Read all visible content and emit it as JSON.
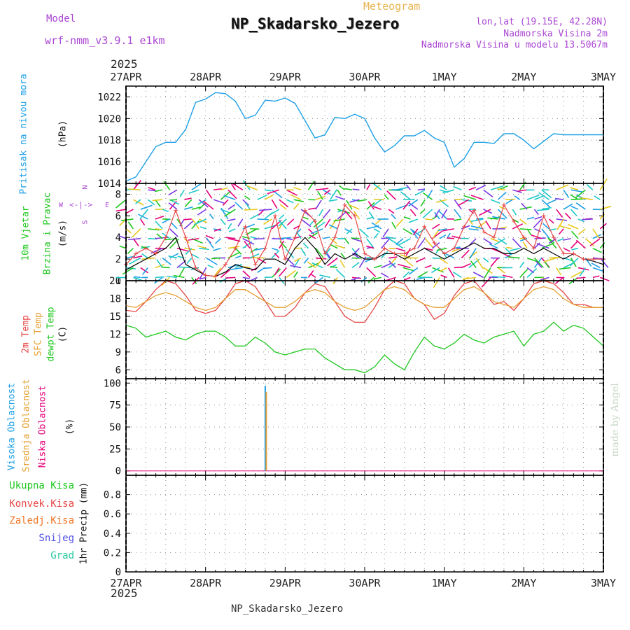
{
  "header": {
    "model_label": "Model",
    "model_name": "wrf-nmm_v3.9.1  e1km",
    "meteogram_label": "Meteogram",
    "station_title": "NP_Skadarsko_Jezero",
    "lonlat": "lon,lat (19.15E, 42.28N)",
    "altitude": "Nadmorska Visina 2m",
    "model_altitude": "Nadmorska Visina u modelu 13.5067m",
    "year_top": "2025",
    "year_bottom": "2025",
    "footer_station": "NP_Skadarsko_Jezero",
    "credit": "made by Angel"
  },
  "colors": {
    "pressure": "#1ea0e6",
    "temp2m": "#e64646",
    "sfc_temp": "#e6a032",
    "dewpt": "#1ec81e",
    "cloud_high": "#1ea0e6",
    "cloud_mid": "#e6a032",
    "cloud_low": "#e6007a",
    "precip_total": "#1ec81e",
    "precip_conv": "#e64646",
    "precip_frozen": "#f07828",
    "snow": "#5050e6",
    "grad": "#28c8a0",
    "wind_speed": "#000000",
    "wind_gust": "#e64646",
    "label_purple": "#aa46d2"
  },
  "chart_data": [
    {
      "type": "line",
      "panel": "pressure",
      "ylabel": "(hPa)",
      "side_label": "Pritisak na nivou mora",
      "ylim": [
        1014,
        1023
      ],
      "yticks": [
        1014,
        1016,
        1018,
        1020,
        1022
      ],
      "grid": true,
      "x_dates": [
        "27APR",
        "28APR",
        "29APR",
        "30APR",
        "1MAY",
        "2MAY",
        "3MAY"
      ],
      "series": [
        {
          "x": [
            0,
            3,
            6,
            9,
            12,
            15,
            18,
            21,
            24,
            27,
            30,
            33,
            36,
            39,
            42,
            45,
            48,
            51,
            54,
            57,
            60,
            63,
            66,
            69,
            72,
            75,
            78,
            81,
            84,
            87,
            90,
            93,
            96,
            99,
            102,
            105,
            108,
            111,
            114,
            117,
            120,
            123,
            126,
            129,
            132,
            135,
            138,
            141,
            144
          ],
          "values": [
            1014.2,
            1014.6,
            1016.0,
            1017.4,
            1017.8,
            1017.8,
            1019.0,
            1021.5,
            1021.8,
            1022.4,
            1022.3,
            1021.6,
            1020.0,
            1020.3,
            1021.7,
            1021.6,
            1021.9,
            1021.4,
            1019.8,
            1018.2,
            1018.5,
            1020.1,
            1020.0,
            1020.4,
            1020.0,
            1018.2,
            1016.9,
            1017.5,
            1018.4,
            1018.4,
            1018.9,
            1018.2,
            1017.8,
            1015.5,
            1016.3,
            1017.8,
            1017.8,
            1017.7,
            1018.6,
            1018.6,
            1018.0,
            1017.2,
            1017.9,
            1018.6,
            1018.5,
            1018.5,
            1018.5,
            1018.5,
            1018.5
          ]
        }
      ]
    },
    {
      "type": "line",
      "panel": "wind",
      "ylabel": "(m/s)",
      "side_label_1": "10m Vjetar",
      "side_label_2": "Brzina i Pravac",
      "ylim": [
        0,
        9
      ],
      "yticks": [
        0,
        2,
        4,
        6,
        8
      ],
      "compass": {
        "w": "W",
        "e": "E",
        "n": "N",
        "s": "S"
      },
      "series": [
        {
          "name": "speed",
          "x": [
            0,
            3,
            6,
            9,
            12,
            15,
            18,
            21,
            24,
            27,
            30,
            33,
            36,
            39,
            42,
            45,
            48,
            51,
            54,
            57,
            60,
            63,
            66,
            69,
            72,
            75,
            78,
            81,
            84,
            87,
            90,
            93,
            96,
            99,
            102,
            105,
            108,
            111,
            114,
            117,
            120,
            123,
            126,
            129,
            132,
            135,
            138,
            141,
            144
          ],
          "values": [
            1.0,
            1.5,
            2.0,
            2.5,
            3.0,
            4.0,
            1.5,
            1.0,
            0.5,
            0.4,
            0.8,
            1.5,
            1.2,
            1.0,
            2.0,
            2.0,
            1.5,
            3.0,
            4.0,
            3.0,
            1.5,
            2.5,
            2.0,
            2.5,
            2.0,
            2.0,
            2.5,
            2.5,
            2.0,
            2.5,
            3.0,
            2.5,
            2.0,
            2.5,
            3.0,
            3.5,
            3.0,
            3.0,
            2.5,
            2.5,
            3.0,
            2.5,
            3.0,
            2.5,
            2.0,
            2.5,
            2.0,
            1.8,
            1.5
          ]
        },
        {
          "name": "gust",
          "x": [
            0,
            3,
            6,
            9,
            12,
            15,
            18,
            21,
            24,
            27,
            30,
            33,
            36,
            39,
            42,
            45,
            48,
            51,
            54,
            57,
            60,
            63,
            66,
            69,
            72,
            75,
            78,
            81,
            84,
            87,
            90,
            93,
            96,
            99,
            102,
            105,
            108,
            111,
            114,
            117,
            120,
            123,
            126,
            129,
            132,
            135,
            138,
            141,
            144
          ],
          "values": [
            1.5,
            2.5,
            3.0,
            2.5,
            4.0,
            6.5,
            4.0,
            1.2,
            0.5,
            0.4,
            1.5,
            3.0,
            5.0,
            1.5,
            3.0,
            6.0,
            2.0,
            4.0,
            6.5,
            5.5,
            2.5,
            4.0,
            7.0,
            6.0,
            2.5,
            2.0,
            3.0,
            2.5,
            2.5,
            3.0,
            5.0,
            3.5,
            2.5,
            3.0,
            5.0,
            6.5,
            4.5,
            4.0,
            7.0,
            5.5,
            4.0,
            3.0,
            6.0,
            4.0,
            2.5,
            2.5,
            2.0,
            2.0,
            2.0
          ]
        }
      ]
    },
    {
      "type": "line",
      "panel": "temperature",
      "ylabel": "(C)",
      "side_label_1": "2m Temp",
      "side_label_2": "SFC Temp",
      "side_label_3": "dewpt Temp",
      "ylim": [
        4.5,
        21
      ],
      "yticks": [
        6,
        9,
        12,
        15,
        18,
        21
      ],
      "series": [
        {
          "name": "2m Temp",
          "x": [
            0,
            3,
            6,
            9,
            12,
            15,
            18,
            21,
            24,
            27,
            30,
            33,
            36,
            39,
            42,
            45,
            48,
            51,
            54,
            57,
            60,
            63,
            66,
            69,
            72,
            75,
            78,
            81,
            84,
            87,
            90,
            93,
            96,
            99,
            102,
            105,
            108,
            111,
            114,
            117,
            120,
            123,
            126,
            129,
            132,
            135,
            138,
            141,
            144
          ],
          "values": [
            16.0,
            15.8,
            17.5,
            19.5,
            21.0,
            20.5,
            18.5,
            16.0,
            15.5,
            16.0,
            18.0,
            20.5,
            21.0,
            20.0,
            17.5,
            15.0,
            15.0,
            16.5,
            19.0,
            20.5,
            20.0,
            17.5,
            15.0,
            14.0,
            14.0,
            16.5,
            19.5,
            21.0,
            20.5,
            18.0,
            17.0,
            14.5,
            15.5,
            18.5,
            20.5,
            21.0,
            19.0,
            17.0,
            17.5,
            16.0,
            18.0,
            20.5,
            21.0,
            20.5,
            19.0,
            17.0,
            17.0,
            16.5,
            16.5
          ]
        },
        {
          "name": "SFC Temp",
          "x": [
            0,
            3,
            6,
            9,
            12,
            15,
            18,
            21,
            24,
            27,
            30,
            33,
            36,
            39,
            42,
            45,
            48,
            51,
            54,
            57,
            60,
            63,
            66,
            69,
            72,
            75,
            78,
            81,
            84,
            87,
            90,
            93,
            96,
            99,
            102,
            105,
            108,
            111,
            114,
            117,
            120,
            123,
            126,
            129,
            132,
            135,
            138,
            141,
            144
          ],
          "values": [
            16.8,
            16.5,
            17.5,
            18.5,
            19.0,
            18.5,
            17.5,
            16.5,
            16.0,
            16.5,
            18.0,
            19.5,
            19.5,
            18.5,
            17.5,
            16.5,
            16.5,
            17.5,
            19.0,
            19.5,
            19.0,
            17.5,
            16.5,
            16.0,
            16.5,
            18.0,
            19.5,
            20.0,
            19.5,
            18.0,
            17.0,
            16.5,
            16.5,
            18.0,
            19.5,
            20.0,
            19.0,
            17.5,
            17.0,
            16.5,
            18.0,
            19.5,
            20.0,
            19.5,
            18.0,
            17.0,
            16.5,
            16.5,
            16.5
          ]
        },
        {
          "name": "dewpt Temp",
          "x": [
            0,
            3,
            6,
            9,
            12,
            15,
            18,
            21,
            24,
            27,
            30,
            33,
            36,
            39,
            42,
            45,
            48,
            51,
            54,
            57,
            60,
            63,
            66,
            69,
            72,
            75,
            78,
            81,
            84,
            87,
            90,
            93,
            96,
            99,
            102,
            105,
            108,
            111,
            114,
            117,
            120,
            123,
            126,
            129,
            132,
            135,
            138,
            141,
            144
          ],
          "values": [
            13.5,
            13.0,
            11.5,
            12.0,
            12.5,
            11.5,
            11.0,
            12.0,
            12.5,
            12.5,
            11.5,
            10.0,
            10.0,
            11.5,
            10.5,
            9.0,
            8.5,
            9.0,
            9.5,
            9.5,
            8.0,
            7.0,
            6.0,
            6.0,
            5.5,
            6.5,
            8.5,
            7.0,
            6.0,
            9.0,
            11.5,
            10.0,
            9.5,
            10.5,
            12.0,
            11.0,
            10.5,
            11.5,
            12.0,
            12.5,
            10.0,
            12.0,
            12.5,
            14.0,
            12.5,
            13.5,
            13.0,
            11.5,
            10.0
          ]
        }
      ]
    },
    {
      "type": "bar",
      "panel": "clouds",
      "ylabel": "(%)",
      "side_label_1": "Visoka Oblacnost",
      "side_label_2": "Srednja Oblacnost",
      "side_label_3": "Niska Oblacnost",
      "ylim": [
        -5,
        105
      ],
      "yticks": [
        0,
        25,
        50,
        75,
        100
      ],
      "series": [
        {
          "name": "Visoka Oblacnost",
          "x": [
            42
          ],
          "values": [
            97
          ]
        },
        {
          "name": "Srednja Oblacnost",
          "x": [
            42
          ],
          "values": [
            90
          ]
        },
        {
          "name": "Niska Oblacnost",
          "x": [
            42
          ],
          "values": [
            0
          ]
        }
      ]
    },
    {
      "type": "bar",
      "panel": "precip",
      "ylabel": "1hr Precip (mm)",
      "side_label_1": "Ukupna Kisa",
      "side_label_2": "Konvek.Kisa",
      "side_label_3": "Zaledj.Kisa",
      "side_label_4": "Snijeg",
      "side_label_5": "Grad",
      "ylim": [
        0,
        1
      ],
      "yticks": [
        0,
        0.2,
        0.4,
        0.6,
        0.8
      ],
      "series": [
        {
          "name": "Ukupna Kisa",
          "x": [],
          "values": []
        }
      ]
    }
  ]
}
